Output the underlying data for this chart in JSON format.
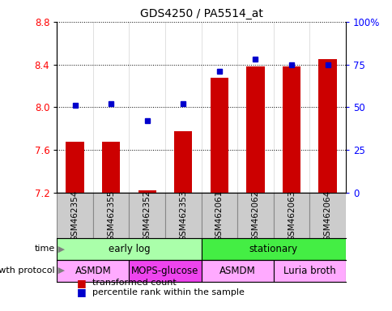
{
  "title": "GDS4250 / PA5514_at",
  "samples": [
    "GSM462354",
    "GSM462355",
    "GSM462352",
    "GSM462353",
    "GSM462061",
    "GSM462062",
    "GSM462063",
    "GSM462064"
  ],
  "transformed_count": [
    7.68,
    7.68,
    7.22,
    7.78,
    8.28,
    8.38,
    8.38,
    8.45
  ],
  "percentile_rank": [
    51,
    52,
    42,
    52,
    71,
    78,
    75,
    75
  ],
  "ylim_left": [
    7.2,
    8.8
  ],
  "ylim_right": [
    0,
    100
  ],
  "yticks_left": [
    7.2,
    7.6,
    8.0,
    8.4,
    8.8
  ],
  "yticks_right": [
    0,
    25,
    50,
    75,
    100
  ],
  "ytick_labels_right": [
    "0",
    "25",
    "50",
    "75",
    "100%"
  ],
  "bar_bottom": 7.2,
  "bar_color": "#cc0000",
  "dot_color": "#0000cc",
  "time_groups": [
    {
      "label": "early log",
      "start": 0,
      "end": 4,
      "color": "#aaffaa"
    },
    {
      "label": "stationary",
      "start": 4,
      "end": 8,
      "color": "#44ee44"
    }
  ],
  "protocol_groups": [
    {
      "label": "ASMDM",
      "start": 0,
      "end": 2,
      "color": "#ffaaff"
    },
    {
      "label": "MOPS-glucose",
      "start": 2,
      "end": 4,
      "color": "#ee44ee"
    },
    {
      "label": "ASMDM",
      "start": 4,
      "end": 6,
      "color": "#ffaaff"
    },
    {
      "label": "Luria broth",
      "start": 6,
      "end": 8,
      "color": "#ffaaff"
    }
  ],
  "legend_bar_color": "#cc0000",
  "legend_dot_color": "#0000cc",
  "legend_bar_label": "transformed count",
  "legend_dot_label": "percentile rank within the sample",
  "xlabel_time": "time",
  "xlabel_protocol": "growth protocol",
  "sample_bg_color": "#cccccc",
  "sample_border_color": "#888888"
}
